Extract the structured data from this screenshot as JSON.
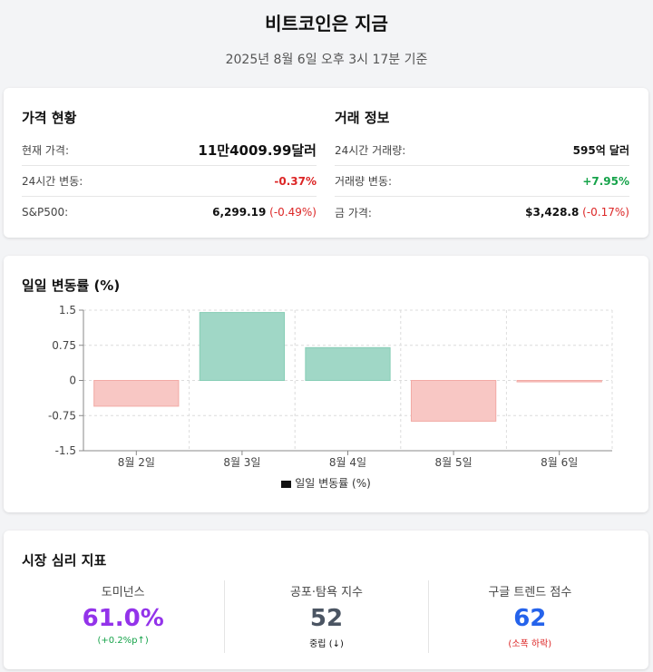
{
  "header": {
    "title": "비트코인은 지금",
    "subtitle": "2025년 8월 6일 오후 3시 17분 기준"
  },
  "price": {
    "title": "가격 현황",
    "rows": [
      {
        "label": "현재 가격:",
        "value": "11만4009.99달러"
      },
      {
        "label": "24시간 변동:",
        "value": "-0.37%"
      },
      {
        "label": "S&P500:",
        "value": "6,299.19",
        "change": "(-0.49%)"
      }
    ]
  },
  "trade": {
    "title": "거래 정보",
    "rows": [
      {
        "label": "24시간 거래량:",
        "value": "595억 달러"
      },
      {
        "label": "거래량 변동:",
        "value": "+7.95%"
      },
      {
        "label": "금 가격:",
        "value": "$3,428.8",
        "change": "(-0.17%)"
      }
    ]
  },
  "chart_title": "일일 변동률 (%)",
  "chart_data": {
    "type": "bar",
    "title": "일일 변동률 (%)",
    "categories": [
      "8월 2일",
      "8월 3일",
      "8월 4일",
      "8월 5일",
      "8월 6일"
    ],
    "series": [
      {
        "name": "일일 변동률 (%)",
        "values": [
          -0.55,
          1.45,
          0.7,
          -0.87,
          -0.03
        ]
      }
    ],
    "ylim": [
      -1.5,
      1.5
    ],
    "yticks": [
      "1.5",
      "0.75",
      "0",
      "-0.75",
      "-1.5"
    ],
    "grid": true,
    "legend": "bottom",
    "colors": {
      "positive": "#a0d7c6",
      "negative": "#f8c7c4",
      "positive_stroke": "#86cdb5",
      "negative_stroke": "#f2aaa5"
    }
  },
  "sentiment": {
    "title": "시장 심리 지표",
    "metrics": [
      {
        "label": "도미넌스",
        "value": "61.0%",
        "note": "(+0.2%p↑)",
        "value_color": "#9333ea",
        "note_color": "#16a34a"
      },
      {
        "label": "공포·탐욕 지수",
        "value": "52",
        "note": "중립 (↓)",
        "value_color": "#4b5563",
        "note_color": "#111"
      },
      {
        "label": "구글 트렌드 점수",
        "value": "62",
        "note": "(소폭 하락)",
        "value_color": "#2563eb",
        "note_color": "#dc2626"
      }
    ]
  }
}
